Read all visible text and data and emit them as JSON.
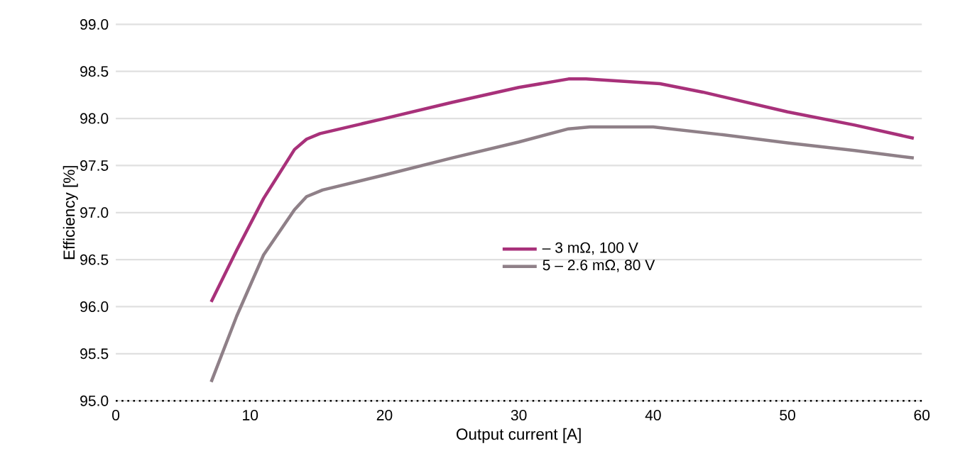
{
  "chart_data": {
    "type": "line",
    "xlabel": "Output current [A]",
    "ylabel": "Efficiency [%]",
    "series": [
      {
        "name": "– 3 mΩ, 100 V",
        "color": "#a8317a",
        "x": [
          7.1,
          9,
          11,
          13.3,
          14.2,
          15.2,
          20,
          25,
          30,
          33.7,
          35,
          40.5,
          43.7,
          50,
          55,
          59.4
        ],
        "values": [
          96.05,
          96.6,
          97.15,
          97.67,
          97.78,
          97.84,
          98.0,
          98.17,
          98.33,
          98.42,
          98.42,
          98.37,
          98.28,
          98.07,
          97.93,
          97.79
        ]
      },
      {
        "name": "5 – 2.6 mΩ, 80 V",
        "color": "#8f8088",
        "x": [
          7.1,
          9,
          11,
          13.3,
          14.2,
          15.4,
          20,
          25,
          30,
          33.7,
          35.3,
          40,
          45,
          50,
          55,
          59.4
        ],
        "values": [
          95.2,
          95.9,
          96.55,
          97.03,
          97.17,
          97.24,
          97.4,
          97.58,
          97.75,
          97.89,
          97.91,
          97.91,
          97.83,
          97.74,
          97.66,
          97.58
        ]
      }
    ],
    "xlim": [
      0,
      60
    ],
    "xticks": [
      0,
      10,
      20,
      30,
      40,
      50,
      60
    ],
    "ylim": [
      95,
      99
    ],
    "yticks": [
      {
        "value": 95,
        "label": "95.0"
      },
      {
        "value": 95.5,
        "label": "95.5"
      },
      {
        "value": 96,
        "label": "96.0"
      },
      {
        "value": 96.5,
        "label": "96.5"
      },
      {
        "value": 97,
        "label": "97.0"
      },
      {
        "value": 97.5,
        "label": "97.5"
      },
      {
        "value": 98,
        "label": "98.0"
      },
      {
        "value": 98.5,
        "label": "98.5"
      },
      {
        "value": 99,
        "label": "99.0"
      }
    ],
    "grid": "y",
    "legend": "center",
    "marker": "none",
    "line_style": "solid"
  }
}
